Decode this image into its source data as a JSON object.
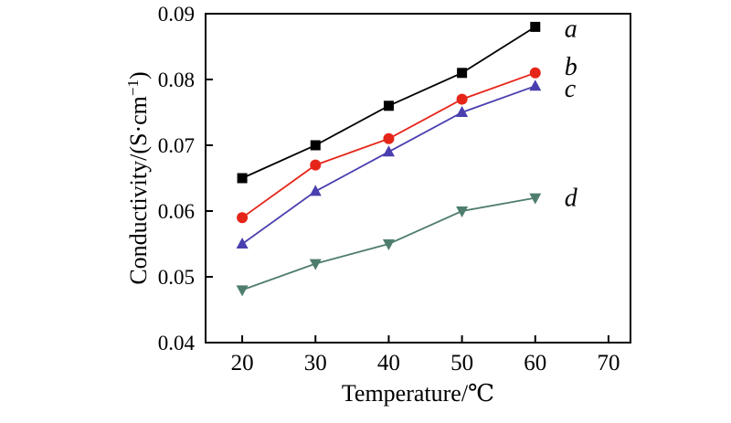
{
  "figure": {
    "background": "#ffffff"
  },
  "chart_data": {
    "type": "line",
    "title": "",
    "xlabel": "Temperature/℃",
    "ylabel": "Conductivity/(S·cm⁻¹)",
    "xlim": [
      15,
      73
    ],
    "ylim": [
      0.04,
      0.09
    ],
    "xticks": [
      20,
      30,
      40,
      50,
      60,
      70
    ],
    "yticks": [
      0.04,
      0.05,
      0.06,
      0.07,
      0.08,
      0.09
    ],
    "grid": false,
    "legend_position": "inline-right-of-last-point",
    "axis_color": "#000000",
    "x": [
      20,
      30,
      40,
      50,
      60
    ],
    "series": [
      {
        "name": "a",
        "marker": "square",
        "color": "#000000",
        "values": [
          0.065,
          0.07,
          0.076,
          0.081,
          0.088
        ],
        "label_dy": 2
      },
      {
        "name": "b",
        "marker": "circle",
        "color": "#e62519",
        "values": [
          0.059,
          0.067,
          0.071,
          0.077,
          0.081
        ],
        "label_dy": -7
      },
      {
        "name": "c",
        "marker": "triangle-up",
        "color": "#4a3faf",
        "values": [
          0.055,
          0.063,
          0.069,
          0.075,
          0.079
        ],
        "label_dy": 3
      },
      {
        "name": "d",
        "marker": "triangle-down",
        "color": "#4f7d6d",
        "values": [
          0.048,
          0.052,
          0.055,
          0.06,
          0.062
        ],
        "label_dy": 0
      }
    ]
  }
}
